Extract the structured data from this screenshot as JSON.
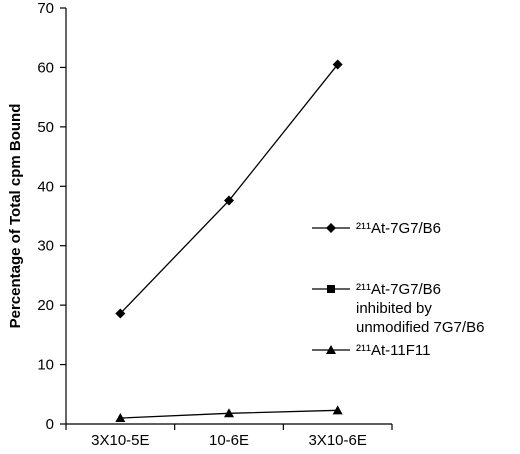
{
  "chart_data": {
    "type": "line",
    "title": "",
    "xlabel": "",
    "ylabel": "Percentage of Total cpm Bound",
    "categories": [
      "3X10-5E",
      "10-6E",
      "3X10-6E"
    ],
    "ylim": [
      0,
      70
    ],
    "yticks": [
      0,
      10,
      20,
      30,
      40,
      50,
      60,
      70
    ],
    "grid": false,
    "legend_position": "right",
    "series": [
      {
        "name": "²¹¹At-7G7/B6",
        "marker": "diamond",
        "values": [
          18.6,
          37.6,
          60.5
        ]
      },
      {
        "name": "²¹¹At-7G7/B6 inhibited by unmodified 7G7/B6",
        "legend_lines": [
          "²¹¹At-7G7/B6",
          "inhibited by",
          "unmodified 7G7/B6"
        ],
        "marker": "square",
        "values": [
          null,
          null,
          null
        ]
      },
      {
        "name": "²¹¹At-11F11",
        "marker": "triangle",
        "values": [
          1.0,
          1.8,
          2.3
        ]
      }
    ]
  }
}
